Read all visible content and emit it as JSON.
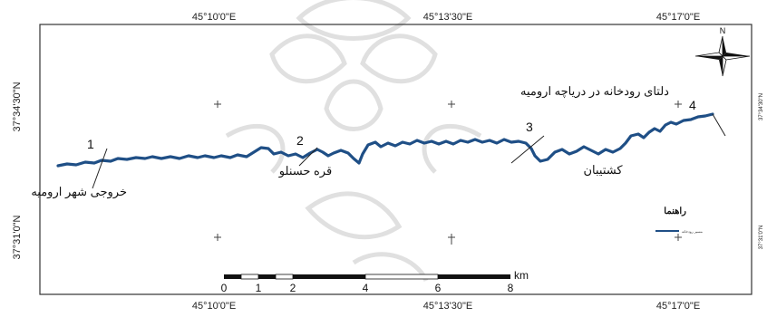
{
  "map": {
    "coords": {
      "top": [
        "45°10'0\"E",
        "45°13'30\"E",
        "45°17'0\"E"
      ],
      "bottom": [
        "45°10'0\"E",
        "45°13'30\"E",
        "45°17'0\"E"
      ],
      "left": [
        "37°34'30\"N",
        "37°31'0\"N"
      ],
      "right": [
        "37°34'30\"N",
        "37°31'0\"N"
      ]
    },
    "north_label": "N",
    "points": [
      {
        "number": "1",
        "label": "خروجی شهر ارومیه"
      },
      {
        "number": "2",
        "label": "قره حسنلو"
      },
      {
        "number": "3",
        "label": "کشتیبان"
      },
      {
        "number": "4",
        "label": "دلتای رودخانه در دریاچه ارومیه"
      }
    ],
    "legend": {
      "title": "راهنما",
      "item_label": "مسیر رودخانه"
    },
    "scale": {
      "ticks": [
        "0",
        "1",
        "2",
        "4",
        "6",
        "8"
      ],
      "unit": "km"
    },
    "colors": {
      "river": "#1f4f86",
      "frame": "#333333",
      "watermark": "#c9c9c9"
    }
  }
}
